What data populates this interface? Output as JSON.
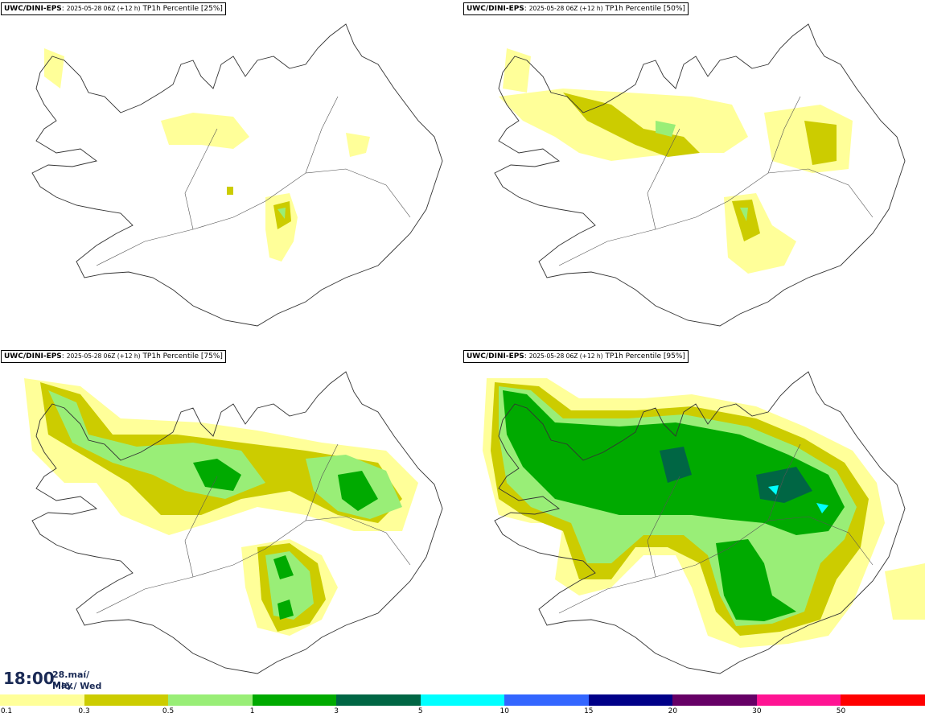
{
  "panels": [
    {
      "model": "UWC/DINI-EPS",
      "run": "2025-05-28 06Z (+12 h)",
      "field": "TP1h Percentile [25%]",
      "level": 1
    },
    {
      "model": "UWC/DINI-EPS",
      "run": "2025-05-28 06Z (+12 h)",
      "field": "TP1h Percentile [50%]",
      "level": 2
    },
    {
      "model": "UWC/DINI-EPS",
      "run": "2025-05-28 06Z (+12 h)",
      "field": "TP1h Percentile [75%]",
      "level": 3
    },
    {
      "model": "UWC/DINI-EPS",
      "run": "2025-05-28 06Z (+12 h)",
      "field": "TP1h Percentile [95%]",
      "level": 4
    }
  ],
  "valid_time": {
    "time": "18:00",
    "date_line1": "28.maí/ May",
    "date_line2": "Mið./ Wed"
  },
  "colorbar": {
    "colors": [
      "#ffff99",
      "#cccc00",
      "#99ee77",
      "#00aa00",
      "#006644",
      "#00ffff",
      "#3366ff",
      "#000088",
      "#660066",
      "#ff1493",
      "#ff0000"
    ],
    "labels": [
      "0.1",
      "0.3",
      "0.5",
      "1",
      "3",
      "5",
      "10",
      "15",
      "20",
      "30",
      "50"
    ]
  }
}
